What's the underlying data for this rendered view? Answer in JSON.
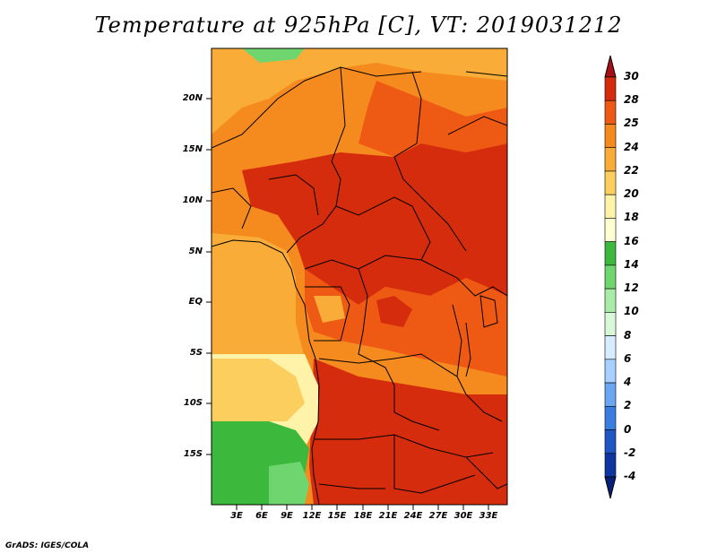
{
  "title": "Temperature at 925hPa [C], VT: 2019031212",
  "credit": "GrADS: IGES/COLA",
  "map": {
    "lat_labels": [
      "20N",
      "15N",
      "10N",
      "5N",
      "EQ",
      "5S",
      "10S",
      "15S"
    ],
    "lon_labels": [
      "3E",
      "6E",
      "9E",
      "12E",
      "15E",
      "18E",
      "21E",
      "24E",
      "27E",
      "30E",
      "33E"
    ]
  },
  "colorbar": {
    "labels": [
      "30",
      "28",
      "25",
      "24",
      "22",
      "20",
      "18",
      "16",
      "14",
      "12",
      "10",
      "8",
      "6",
      "4",
      "2",
      "0",
      "-2",
      "-4"
    ],
    "colors": [
      "#a50f15",
      "#d42c0c",
      "#ee5a14",
      "#f58a1f",
      "#f9ad38",
      "#fcce5e",
      "#fef3a8",
      "#ffffd4",
      "#3cb83c",
      "#6fd66f",
      "#a8eca8",
      "#d8f8d8",
      "#d6ecff",
      "#a6d0ff",
      "#6aa6f2",
      "#3a7de0",
      "#1e57c4",
      "#0f36a0",
      "#08207a"
    ]
  }
}
